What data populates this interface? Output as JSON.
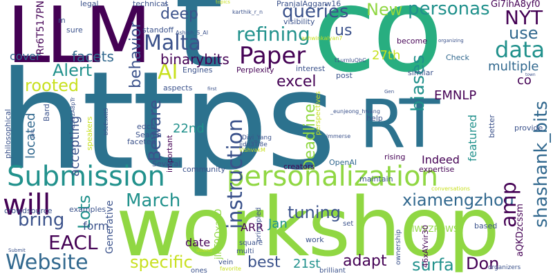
{
  "words": [
    {
      "t": "https"
    },
    {
      "t": "co"
    },
    {
      "t": "workshop"
    },
    {
      "t": "LLM"
    },
    {
      "t": "RT"
    },
    {
      "t": "t"
    },
    {
      "t": "personalization"
    },
    {
      "t": "Submission"
    },
    {
      "t": "instruction"
    },
    {
      "t": "will"
    },
    {
      "t": "Website"
    },
    {
      "t": "Paper"
    },
    {
      "t": "Malta"
    },
    {
      "t": "data"
    },
    {
      "t": "refining"
    },
    {
      "t": "queries"
    },
    {
      "t": "personas"
    },
    {
      "t": "deep"
    },
    {
      "t": "New"
    },
    {
      "t": "NYT"
    },
    {
      "t": "use"
    },
    {
      "t": "us"
    },
    {
      "t": "AI"
    },
    {
      "t": "Alert"
    },
    {
      "t": "behavior"
    },
    {
      "t": "binarybits"
    },
    {
      "t": "facets"
    },
    {
      "t": "rooted"
    },
    {
      "t": "excel"
    },
    {
      "t": "biases"
    },
    {
      "t": "shashank_bits"
    },
    {
      "t": "Beware"
    },
    {
      "t": "March"
    },
    {
      "t": "tuning"
    },
    {
      "t": "xiamengzhou"
    },
    {
      "t": "amp"
    },
    {
      "t": "Lots"
    },
    {
      "t": "bring"
    },
    {
      "t": "EACL"
    },
    {
      "t": "specific"
    },
    {
      "t": "best"
    },
    {
      "t": "adapt"
    },
    {
      "t": "surfa"
    },
    {
      "t": "Don"
    },
    {
      "t": "Deadline"
    },
    {
      "t": "EMNLP"
    },
    {
      "t": "multiple"
    },
    {
      "t": "co"
    },
    {
      "t": "27th"
    },
    {
      "t": "22nd"
    },
    {
      "t": "Indeed"
    },
    {
      "t": "accepting"
    },
    {
      "t": "located"
    },
    {
      "t": "cover"
    },
    {
      "t": "Jan"
    },
    {
      "t": "21st"
    },
    {
      "t": "form"
    },
    {
      "t": "date"
    },
    {
      "t": "ARR"
    },
    {
      "t": "featured"
    },
    {
      "t": "oRr6T517PN"
    },
    {
      "t": "Gi7ihA8yf0"
    },
    {
      "t": "PranjalAggarw16"
    },
    {
      "t": "standoff"
    },
    {
      "t": "become"
    },
    {
      "t": "Check"
    },
    {
      "t": "Perplexity"
    },
    {
      "t": "OpenAI"
    },
    {
      "t": "legal"
    },
    {
      "t": "technical"
    },
    {
      "t": "aspects"
    },
    {
      "t": "Engines"
    },
    {
      "t": "sure"
    },
    {
      "t": "Generative"
    },
    {
      "t": "jlFT9QxazD"
    },
    {
      "t": "aQKDzcssm"
    },
    {
      "t": "lWVZPDWSii"
    },
    {
      "t": "46xAYvir30"
    },
    {
      "t": "important"
    },
    {
      "t": "Search"
    },
    {
      "t": "faceted"
    },
    {
      "t": "edchi"
    },
    {
      "t": "Several"
    },
    {
      "t": "community"
    },
    {
      "t": "creators"
    },
    {
      "t": "expertise"
    },
    {
      "t": "rising"
    },
    {
      "t": "help"
    },
    {
      "t": "post"
    },
    {
      "t": "interest"
    },
    {
      "t": "similar"
    },
    {
      "t": "work"
    },
    {
      "t": "maintain"
    },
    {
      "t": "based"
    },
    {
      "t": "provide"
    },
    {
      "t": "better"
    },
    {
      "t": "examples"
    },
    {
      "t": "crowdsource"
    },
    {
      "t": "philosophical"
    },
    {
      "t": "Bard"
    },
    {
      "t": "speakers"
    },
    {
      "t": "principled"
    },
    {
      "t": "ownership"
    },
    {
      "t": "set"
    },
    {
      "t": "square"
    },
    {
      "t": "multi"
    },
    {
      "t": "vein"
    },
    {
      "t": "ones"
    },
    {
      "t": "brilliant"
    },
    {
      "t": "favorite"
    },
    {
      "t": "organizers"
    },
    {
      "t": "conversations"
    },
    {
      "t": "immerse"
    },
    {
      "t": "perspectives"
    },
    {
      "t": "Diyi_Yang"
    },
    {
      "t": "IjdiI3Ti8e"
    },
    {
      "t": "_eunjeong_hwang"
    },
    {
      "t": "VishvakM"
    },
    {
      "t": "bSzEsxtt5"
    },
    {
      "t": "qSl52A8pTr"
    },
    {
      "t": "Ashish_S_AI"
    },
    {
      "t": "karthik_r_n"
    },
    {
      "t": "t1urnluQbC"
    },
    {
      "t": "ashwinkalyan7"
    },
    {
      "t": "visibility"
    },
    {
      "t": "topics"
    },
    {
      "t": "organizing"
    },
    {
      "t": "town"
    },
    {
      "t": "Gen"
    },
    {
      "t": "first"
    },
    {
      "t": "attend"
    },
    {
      "t": "Submit"
    },
    {
      "t": "join"
    },
    {
      "t": "m"
    },
    {
      "t": "s"
    }
  ],
  "colors": {
    "dark_purple": "#440154",
    "indigo": "#3b528b",
    "teal_blue": "#2c728e",
    "teal": "#21918c",
    "green": "#28ae80",
    "lime": "#5ec962",
    "yellow_green": "#90d743",
    "yellow": "#c8e020",
    "blue_gray": "#31688e"
  }
}
